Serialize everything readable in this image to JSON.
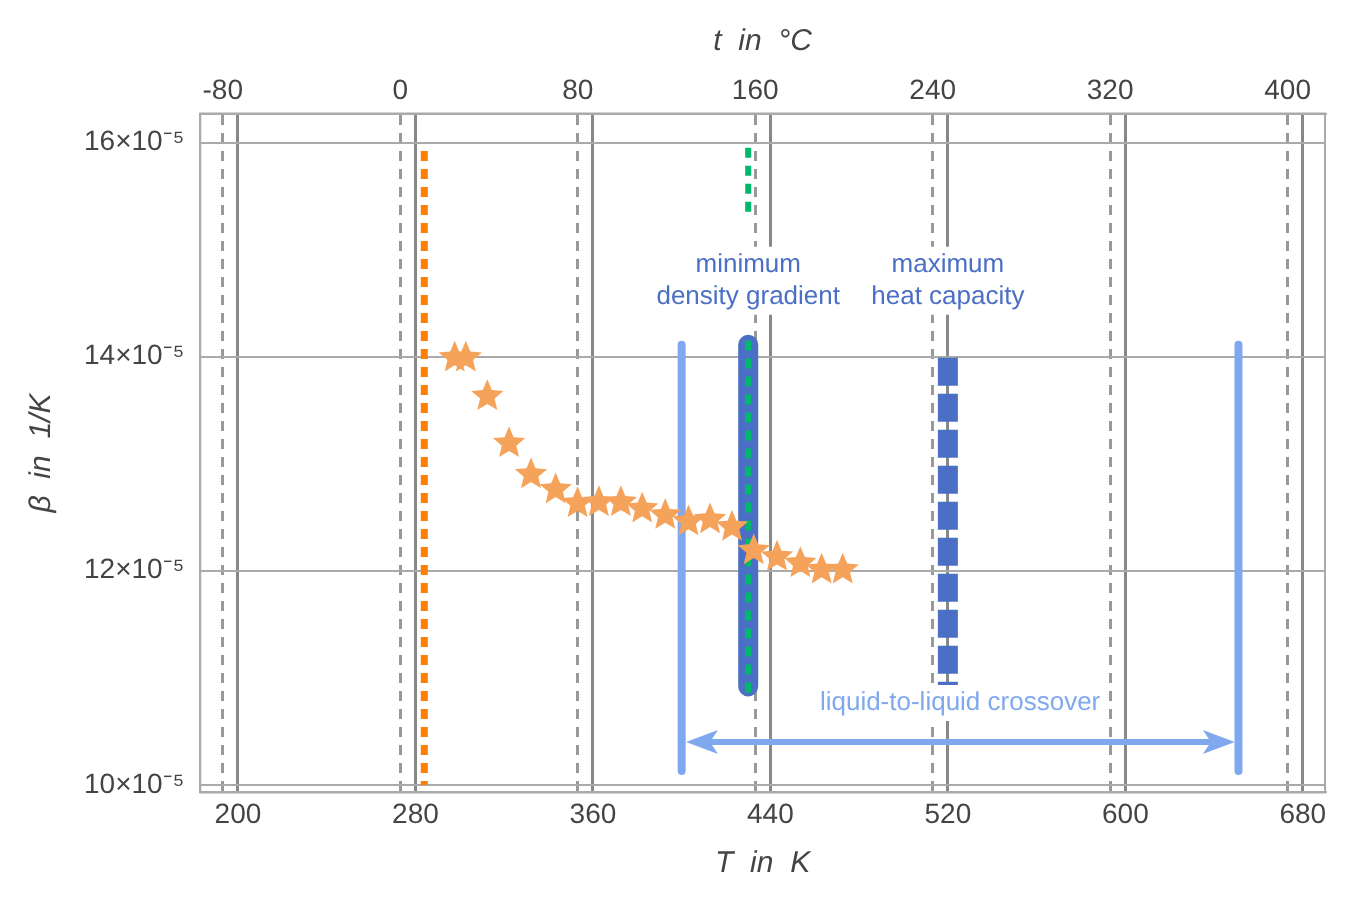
{
  "chart_data": {
    "type": "scatter",
    "xlabel": "T  in  K",
    "ylabel": "β  in  1/K",
    "x2label": "t  in  °C",
    "xlim": [
      183,
      690
    ],
    "xticks": [
      200,
      280,
      360,
      440,
      520,
      600,
      680
    ],
    "x2lim": [
      -90.15,
      416.85
    ],
    "x2ticks": [
      -80,
      0,
      80,
      160,
      240,
      320,
      400
    ],
    "ylim": [
      9.93e-05,
      0.0001627
    ],
    "yticks": [
      {
        "value": 0.0001,
        "label": "10×10⁻⁵"
      },
      {
        "value": 0.00012,
        "label": "12×10⁻⁵"
      },
      {
        "value": 0.00014,
        "label": "14×10⁻⁵"
      },
      {
        "value": 0.00016,
        "label": "16×10⁻⁵"
      }
    ],
    "grid": true,
    "legend": false,
    "series": [
      {
        "color": "#f5a35a",
        "marker": "star",
        "x": [
          297.7,
          302.7,
          312.4,
          322.2,
          332.1,
          343.2,
          353.1,
          362.7,
          372.6,
          382.2,
          392.6,
          403.1,
          412.8,
          422.7,
          432.5,
          443,
          453.5,
          463.1,
          472.6
        ],
        "values": [
          0.0001399,
          0.0001399,
          0.0001363,
          0.0001319,
          0.000129,
          0.0001276,
          0.0001263,
          0.0001264,
          0.0001264,
          0.0001258,
          0.0001252,
          0.0001246,
          0.0001248,
          0.0001241,
          0.0001219,
          0.0001213,
          0.0001207,
          0.0001201,
          0.0001201
        ]
      },
      {
        "type": "line",
        "color": "#ff8000",
        "line_style": "dashed",
        "marker": "none",
        "x": [
          284,
          284
        ],
        "values": [
          0.0001592,
          0.0001
        ]
      },
      {
        "type": "line",
        "color": "#00b86b",
        "line_style": "dashed",
        "marker": "none",
        "x": [
          430,
          430
        ],
        "values": [
          0.0001595,
          0.000153
        ]
      },
      {
        "type": "line",
        "color": "#00b86b",
        "line_style": "dashed",
        "marker": "none",
        "x": [
          430,
          430
        ],
        "values": [
          0.0001415,
          0.0001083
        ]
      },
      {
        "type": "line",
        "color": "#4a6fc4",
        "line_style": "solid",
        "marker": "none",
        "x": [
          430,
          430
        ],
        "values": [
          0.0001411,
          0.0001092
        ]
      },
      {
        "type": "line",
        "color": "#4a6fc4",
        "line_style": "dashed",
        "marker": "none",
        "x": [
          520,
          520
        ],
        "values": [
          0.0001399,
          0.0001092
        ]
      },
      {
        "type": "line",
        "color": "#7fa8ee",
        "line_style": "solid",
        "marker": "none",
        "x": [
          400,
          400,
          525,
          651,
          651
        ],
        "values": [
          0.0001411,
          0.0001013,
          null,
          0.0001411,
          0.0001013
        ]
      }
    ],
    "annotations": [
      "minimum\ndensity gradient",
      "maximum\nheat capacity",
      "liquid-to-liquid crossover"
    ]
  }
}
